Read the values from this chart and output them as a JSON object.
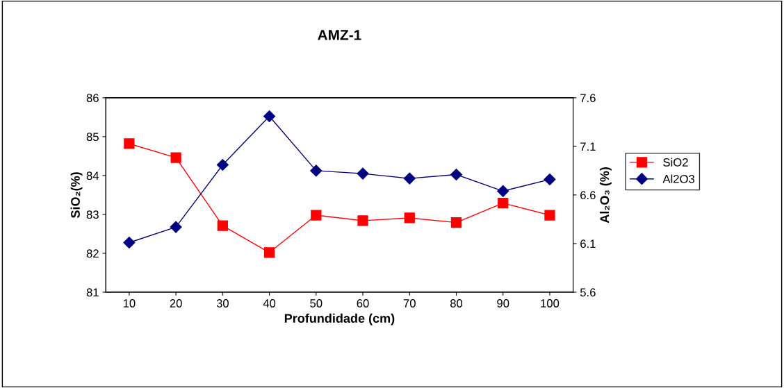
{
  "chart_data": {
    "type": "line",
    "title": "AMZ-1",
    "xlabel": "Profundidade (cm)",
    "ylabel": "SiO₂(%)",
    "y2label": "Al₂O₃ (%)",
    "categories": [
      "10",
      "20",
      "30",
      "40",
      "50",
      "60",
      "70",
      "80",
      "90",
      "100"
    ],
    "series": [
      {
        "name": "SiO2",
        "color": "#ff0000",
        "marker": "square",
        "values": [
          84.82,
          84.46,
          82.71,
          82.02,
          82.98,
          82.84,
          82.91,
          82.79,
          83.29,
          82.98
        ]
      },
      {
        "name": "Al2O3",
        "color": "#000080",
        "marker": "diamond",
        "axis": "y2",
        "values": [
          6.11,
          6.27,
          6.91,
          7.41,
          6.85,
          6.82,
          6.77,
          6.81,
          6.64,
          6.76
        ]
      }
    ],
    "ylim": [
      81,
      86
    ],
    "yticks": [
      81,
      82,
      83,
      84,
      85,
      86
    ],
    "y2lim": [
      5.6,
      7.6
    ],
    "y2ticks": [
      {
        "value": 5.6,
        "label": "5.6"
      },
      {
        "value": 6.1,
        "label": "6.1"
      },
      {
        "value": 6.6,
        "label": "6.6"
      },
      {
        "value": 7.1,
        "label": "7.1"
      },
      {
        "value": 7.6,
        "label": "7.6"
      }
    ],
    "grid": false,
    "legend": "right",
    "line_style": "solid"
  }
}
